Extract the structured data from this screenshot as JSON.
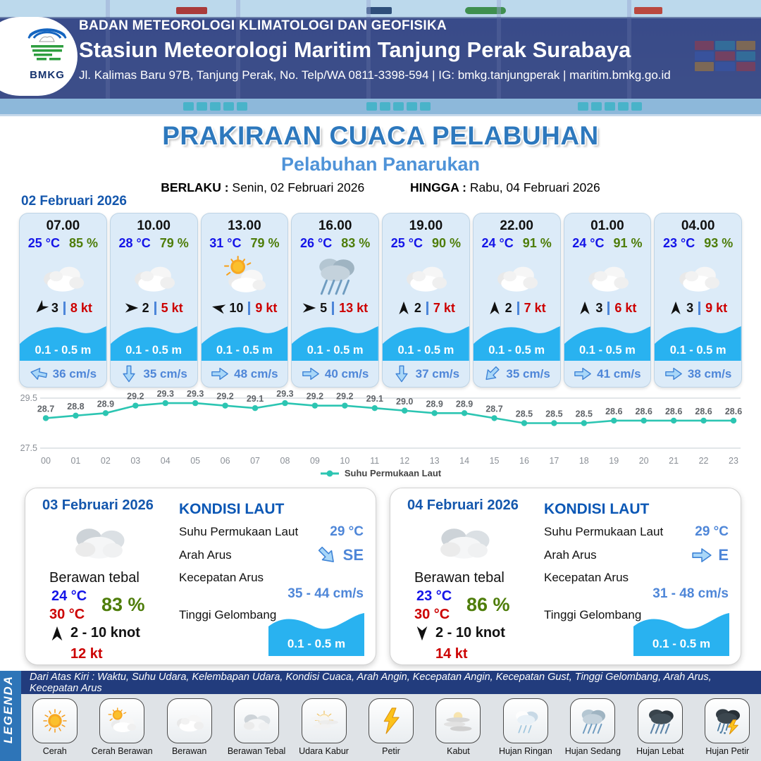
{
  "header": {
    "org": "BADAN METEOROLOGI KLIMATOLOGI DAN GEOFISIKA",
    "station": "Stasiun Meteorologi Maritim Tanjung Perak Surabaya",
    "address": "Jl. Kalimas Baru 97B, Tanjung Perak, No. Telp/WA 0811-3398-594 | IG: bmkg.tanjungperak | maritim.bmkg.go.id",
    "logo_label": "BMKG"
  },
  "title": {
    "main": "PRAKIRAAN CUACA PELABUHAN",
    "subtitle": "Pelabuhan Panarukan",
    "berlaku_label": "BERLAKU :",
    "berlaku_value": "Senin, 02 Februari 2026",
    "hingga_label": "HINGGA :",
    "hingga_value": "Rabu, 04 Februari 2026"
  },
  "forecast": {
    "date": "02 Februari 2026",
    "cards": [
      {
        "time": "07.00",
        "temp": "25 °C",
        "humidity": "85 %",
        "weather": "berawan",
        "wind_dir": "down-left",
        "wind_force": "3",
        "wind_speed": "8 kt",
        "wave": "0.1 - 0.5 m",
        "current_dir": "left",
        "current_speed": "36 cm/s"
      },
      {
        "time": "10.00",
        "temp": "28 °C",
        "humidity": "79 %",
        "weather": "berawan",
        "wind_dir": "right",
        "wind_force": "2",
        "wind_speed": "5 kt",
        "wave": "0.1 - 0.5 m",
        "current_dir": "down",
        "current_speed": "35 cm/s"
      },
      {
        "time": "13.00",
        "temp": "31 °C",
        "humidity": "79 %",
        "weather": "cerah-berawan",
        "wind_dir": "left",
        "wind_force": "10",
        "wind_speed": "9 kt",
        "wave": "0.1 - 0.5 m",
        "current_dir": "right",
        "current_speed": "48 cm/s"
      },
      {
        "time": "16.00",
        "temp": "26 °C",
        "humidity": "83 %",
        "weather": "hujan-sedang",
        "wind_dir": "right",
        "wind_force": "5",
        "wind_speed": "13 kt",
        "wave": "0.1 - 0.5 m",
        "current_dir": "right",
        "current_speed": "40 cm/s"
      },
      {
        "time": "19.00",
        "temp": "25 °C",
        "humidity": "90 %",
        "weather": "berawan",
        "wind_dir": "up",
        "wind_force": "2",
        "wind_speed": "7 kt",
        "wave": "0.1 - 0.5 m",
        "current_dir": "down",
        "current_speed": "37 cm/s"
      },
      {
        "time": "22.00",
        "temp": "24 °C",
        "humidity": "91 %",
        "weather": "berawan",
        "wind_dir": "up",
        "wind_force": "2",
        "wind_speed": "7 kt",
        "wave": "0.1 - 0.5 m",
        "current_dir": "down-left",
        "current_speed": "35 cm/s"
      },
      {
        "time": "01.00",
        "temp": "24 °C",
        "humidity": "91 %",
        "weather": "berawan",
        "wind_dir": "up",
        "wind_force": "3",
        "wind_speed": "6 kt",
        "wave": "0.1 - 0.5 m",
        "current_dir": "right",
        "current_speed": "41 cm/s"
      },
      {
        "time": "04.00",
        "temp": "23 °C",
        "humidity": "93 %",
        "weather": "berawan",
        "wind_dir": "up",
        "wind_force": "3",
        "wind_speed": "9 kt",
        "wave": "0.1 - 0.5 m",
        "current_dir": "right",
        "current_speed": "38 cm/s"
      }
    ]
  },
  "chart_data": {
    "type": "line",
    "x": [
      "00",
      "01",
      "02",
      "03",
      "04",
      "05",
      "06",
      "07",
      "08",
      "09",
      "10",
      "11",
      "12",
      "13",
      "14",
      "15",
      "16",
      "17",
      "18",
      "19",
      "20",
      "21",
      "22",
      "23"
    ],
    "values": [
      28.7,
      28.8,
      28.9,
      29.2,
      29.3,
      29.3,
      29.2,
      29.1,
      29.3,
      29.2,
      29.2,
      29.1,
      29.0,
      28.9,
      28.9,
      28.7,
      28.5,
      28.5,
      28.5,
      28.6,
      28.6,
      28.6,
      28.6,
      28.6
    ],
    "legend": "Suhu Permukaan Laut",
    "ylim": [
      27.5,
      29.5
    ],
    "yticks": [
      29.5,
      27.5
    ],
    "color": "#2cc5b2",
    "grid": "horizontal",
    "legend_position": "bottom"
  },
  "days": [
    {
      "date": "03 Februari 2026",
      "weather_icon": "berawan-tebal",
      "weather": "Berawan tebal",
      "temp_min": "24 °C",
      "temp_max": "30 °C",
      "humidity": "83 %",
      "wind_dir": "up",
      "wind_range": "2  - 10 knot",
      "gust": "12 kt",
      "sea_title": "KONDISI LAUT",
      "sst_label": "Suhu Permukaan Laut",
      "sst": "29 °C",
      "arus_label": "Arah Arus",
      "arus_dir": "down-right",
      "arus_name": "SE",
      "kec_label": "Kecepatan Arus",
      "kec": "35  - 44 cm/s",
      "gel_label": "Tinggi Gelombang",
      "gel": "0.1 - 0.5 m"
    },
    {
      "date": "04 Februari 2026",
      "weather_icon": "berawan-tebal",
      "weather": "Berawan tebal",
      "temp_min": "23 °C",
      "temp_max": "30 °C",
      "humidity": "86 %",
      "wind_dir": "down",
      "wind_range": "2  - 10 knot",
      "gust": "14 kt",
      "sea_title": "KONDISI LAUT",
      "sst_label": "Suhu Permukaan Laut",
      "sst": "29 °C",
      "arus_label": "Arah Arus",
      "arus_dir": "right",
      "arus_name": "E",
      "kec_label": "Kecepatan Arus",
      "kec": "31 - 48 cm/s",
      "gel_label": "Tinggi Gelombang",
      "gel": "0.1 - 0.5 m"
    }
  ],
  "legend": {
    "title": "LEGENDA",
    "note": "Dari Atas Kiri : Waktu, Suhu Udara, Kelembapan Udara, Kondisi Cuaca, Arah Angin, Kecepatan Angin, Kecepatan Gust, Tinggi Gelombang, Arah Arus, Kecepatan Arus",
    "items": [
      {
        "label": "Cerah",
        "icon": "cerah"
      },
      {
        "label": "Cerah Berawan",
        "icon": "cerah-berawan"
      },
      {
        "label": "Berawan",
        "icon": "berawan"
      },
      {
        "label": "Berawan Tebal",
        "icon": "berawan-tebal"
      },
      {
        "label": "Udara Kabur",
        "icon": "udara-kabur"
      },
      {
        "label": "Petir",
        "icon": "petir"
      },
      {
        "label": "Kabut",
        "icon": "kabut"
      },
      {
        "label": "Hujan Ringan",
        "icon": "hujan-ringan"
      },
      {
        "label": "Hujan Sedang",
        "icon": "hujan-sedang"
      },
      {
        "label": "Hujan Lebat",
        "icon": "hujan-lebat"
      },
      {
        "label": "Hujan Petir",
        "icon": "hujan-petir"
      }
    ]
  },
  "colors": {
    "wave_cyan": "#29b2f0",
    "line_teal": "#2cc5b2",
    "temp_blue": "#1414e8",
    "humidity_green": "#4e7d0a",
    "speed_red": "#cc0000",
    "current_blue": "#4e86d8",
    "title_blue": "#2d78bd",
    "header_navy": "#2a3a76"
  }
}
